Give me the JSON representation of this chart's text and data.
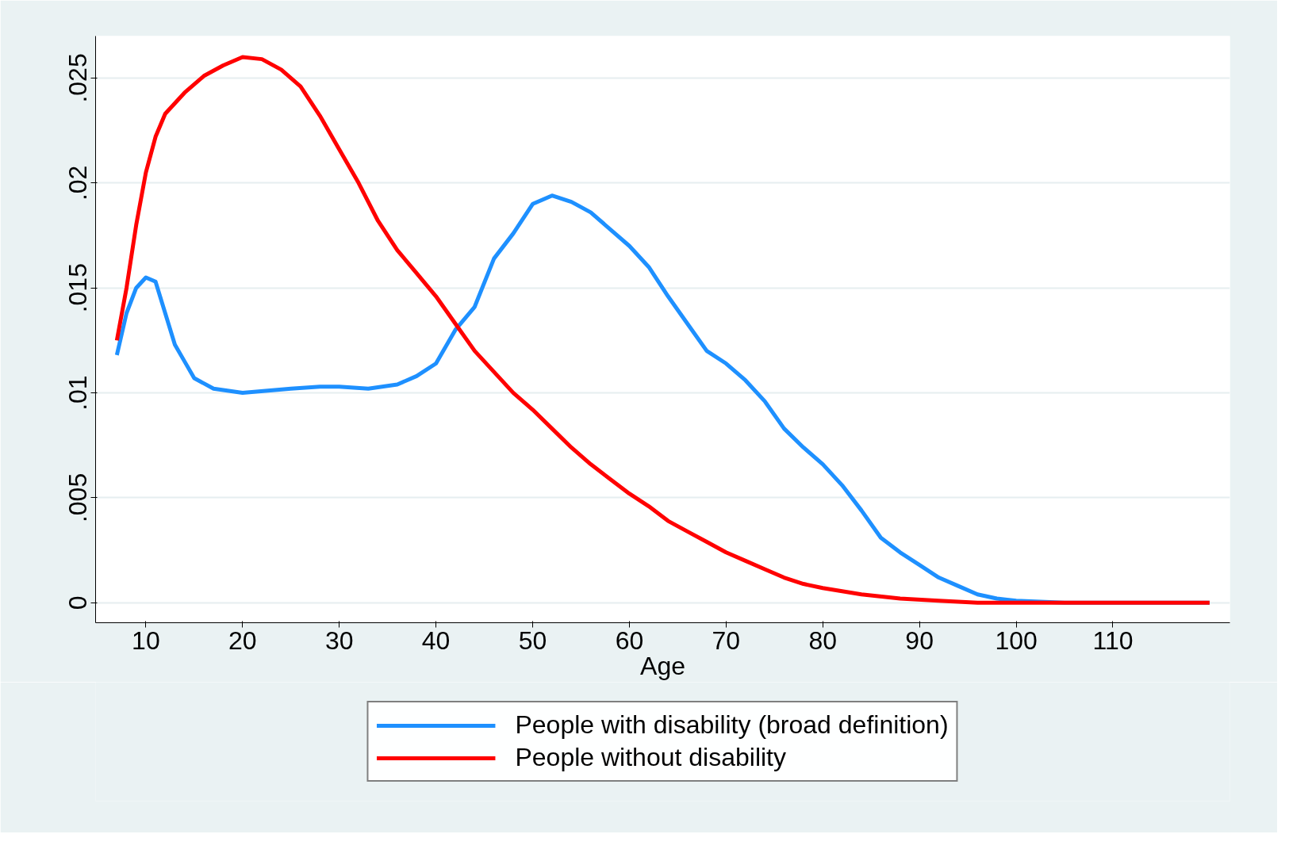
{
  "chart_data": {
    "type": "line",
    "xlabel": "Age",
    "xlim": [
      4.8,
      122.1
    ],
    "ylim": [
      -0.00095,
      0.027
    ],
    "xticks": [
      10,
      20,
      30,
      40,
      50,
      60,
      70,
      80,
      90,
      100,
      110
    ],
    "yticks": [
      0,
      {
        "value": 0.005,
        "label": ".005"
      },
      {
        "value": 0.01,
        "label": ".01"
      },
      {
        "value": 0.015,
        "label": ".015"
      },
      {
        "value": 0.02,
        "label": ".02"
      },
      {
        "value": 0.025,
        "label": ".025"
      }
    ],
    "grid": "y",
    "legend": "bottom",
    "line_style": "solid",
    "marker": "none",
    "series": [
      {
        "name": "People with disability (broad definition)",
        "color": "#1e90ff",
        "x": [
          7,
          8,
          9,
          10,
          11,
          12,
          13,
          14,
          15,
          17,
          20,
          25,
          28,
          30,
          33,
          36,
          38,
          40,
          42,
          44,
          46,
          48,
          50,
          52,
          54,
          56,
          58,
          60,
          62,
          64,
          66,
          68,
          70,
          72,
          74,
          76,
          78,
          80,
          82,
          84,
          86,
          88,
          90,
          92,
          94,
          96,
          98,
          100,
          105,
          110,
          120
        ],
        "values": [
          0.0118,
          0.0138,
          0.015,
          0.0155,
          0.0153,
          0.0138,
          0.0123,
          0.0115,
          0.0107,
          0.0102,
          0.01,
          0.0102,
          0.0103,
          0.0103,
          0.0102,
          0.0104,
          0.0108,
          0.0114,
          0.013,
          0.0141,
          0.0164,
          0.0176,
          0.019,
          0.0194,
          0.0191,
          0.0186,
          0.0178,
          0.017,
          0.016,
          0.0146,
          0.0133,
          0.012,
          0.0114,
          0.0106,
          0.0096,
          0.0083,
          0.0074,
          0.0066,
          0.0056,
          0.0044,
          0.0031,
          0.0024,
          0.0018,
          0.0012,
          0.0008,
          0.0004,
          0.0002,
          0.0001,
          0.0,
          0.0,
          0.0
        ]
      },
      {
        "name": "People without disability",
        "color": "#ff0000",
        "x": [
          7,
          8,
          9,
          10,
          11,
          12,
          14,
          16,
          18,
          20,
          22,
          24,
          26,
          28,
          30,
          32,
          34,
          36,
          38,
          40,
          42,
          44,
          46,
          48,
          50,
          52,
          54,
          56,
          58,
          60,
          62,
          64,
          66,
          68,
          70,
          72,
          74,
          76,
          78,
          80,
          84,
          88,
          92,
          96,
          100,
          120
        ],
        "values": [
          0.0125,
          0.015,
          0.018,
          0.0205,
          0.0222,
          0.0233,
          0.0243,
          0.0251,
          0.0256,
          0.026,
          0.0259,
          0.0254,
          0.0246,
          0.0232,
          0.0216,
          0.02,
          0.0182,
          0.0168,
          0.0157,
          0.0146,
          0.0133,
          0.012,
          0.011,
          0.01,
          0.0092,
          0.0083,
          0.0074,
          0.0066,
          0.0059,
          0.0052,
          0.0046,
          0.0039,
          0.0034,
          0.0029,
          0.0024,
          0.002,
          0.0016,
          0.0012,
          0.0009,
          0.0007,
          0.0004,
          0.0002,
          0.0001,
          0.0,
          0.0,
          0.0
        ]
      }
    ]
  }
}
